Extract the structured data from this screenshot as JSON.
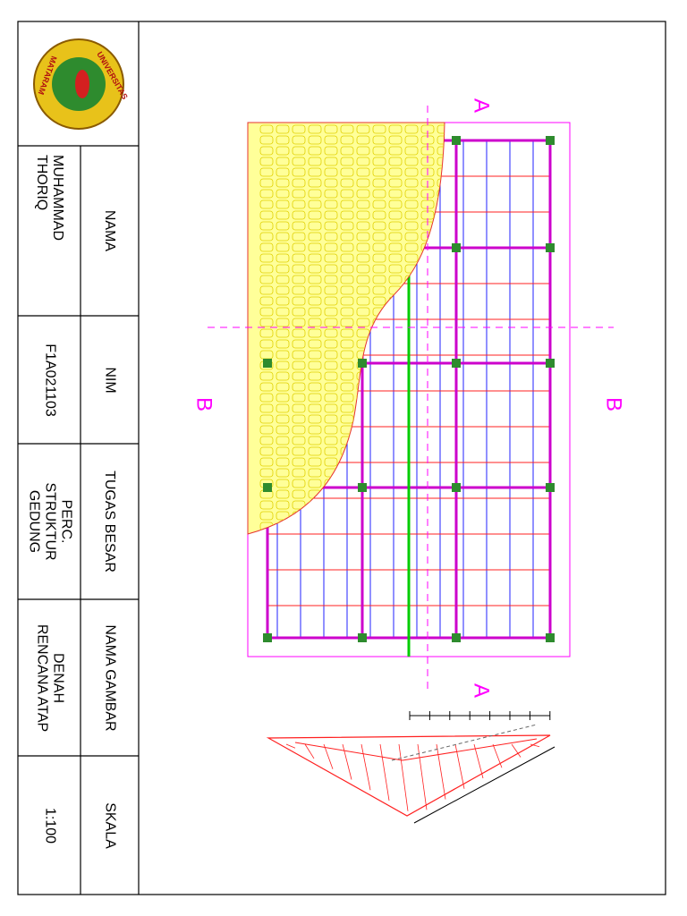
{
  "title_block": {
    "logo": {
      "top_text": "UNIVERSITAS",
      "bottom_text": "MATARAM"
    },
    "fields": [
      {
        "label": "NAMA",
        "value": "MUHAMMAD THORIQ"
      },
      {
        "label": "NIM",
        "value": "F1A021103"
      },
      {
        "label": "TUGAS BESAR",
        "value": "PERC. STRUKTUR GEDUNG"
      },
      {
        "label": "NAMA GAMBAR",
        "value": "DENAH RENCANA ATAP"
      },
      {
        "label": "SKALA",
        "value": "1:100"
      }
    ]
  },
  "drawing": {
    "section_markers": [
      "A",
      "A",
      "B",
      "B"
    ]
  }
}
